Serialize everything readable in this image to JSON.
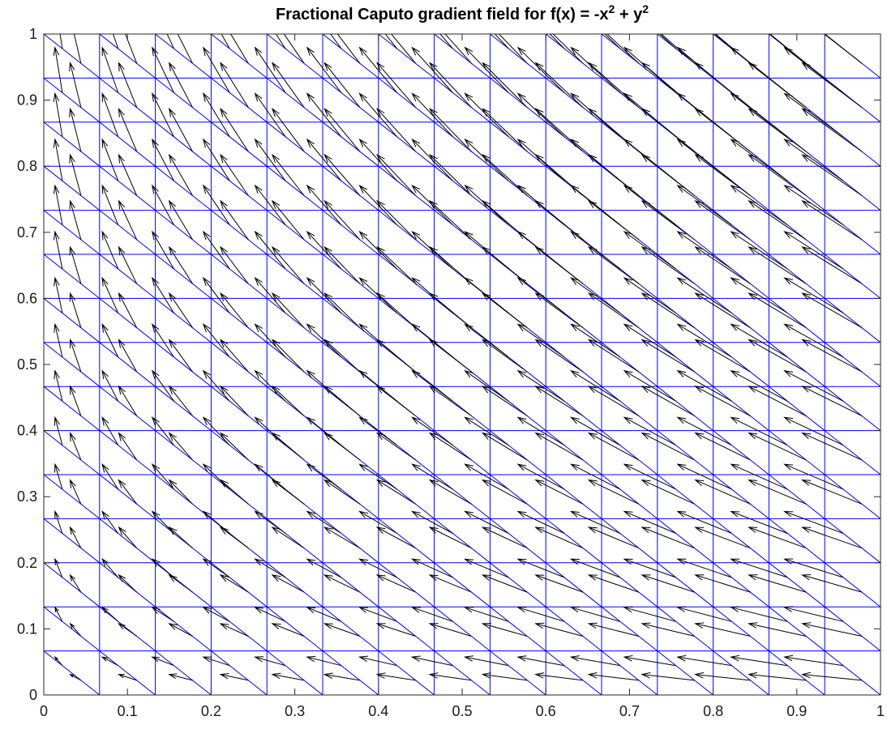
{
  "chart_data": {
    "type": "quiver",
    "title": {
      "parts": [
        {
          "text": "Fractional Caputo gradient field for f(x) = -x",
          "sup": false
        },
        {
          "text": "2",
          "sup": true
        },
        {
          "text": " + y",
          "sup": false
        },
        {
          "text": "2",
          "sup": true
        }
      ]
    },
    "xlabel": "",
    "ylabel": "",
    "xlim": [
      0,
      1
    ],
    "ylim": [
      0,
      1
    ],
    "x_ticks": [
      0,
      0.1,
      0.2,
      0.3,
      0.4,
      0.5,
      0.6,
      0.7,
      0.8,
      0.9,
      1
    ],
    "y_ticks": [
      0,
      0.1,
      0.2,
      0.3,
      0.4,
      0.5,
      0.6,
      0.7,
      0.8,
      0.9,
      1
    ],
    "x_tick_labels": [
      "0",
      "0.1",
      "0.2",
      "0.3",
      "0.4",
      "0.5",
      "0.6",
      "0.7",
      "0.8",
      "0.9",
      "1"
    ],
    "y_tick_labels": [
      "0",
      "0.1",
      "0.2",
      "0.3",
      "0.4",
      "0.5",
      "0.6",
      "0.7",
      "0.8",
      "0.9",
      "1"
    ],
    "mesh": {
      "type": "triangular",
      "divisions": 15,
      "diagonal": "top-left to bottom-right",
      "color": "#0000ff"
    },
    "vector_field": {
      "color": "#000000",
      "points_per_cell": 2,
      "placement": "centroids of the two triangles in each mesh cell",
      "direction": "up-left",
      "field": "caputo gradient of -x^2 + y^2"
    }
  }
}
